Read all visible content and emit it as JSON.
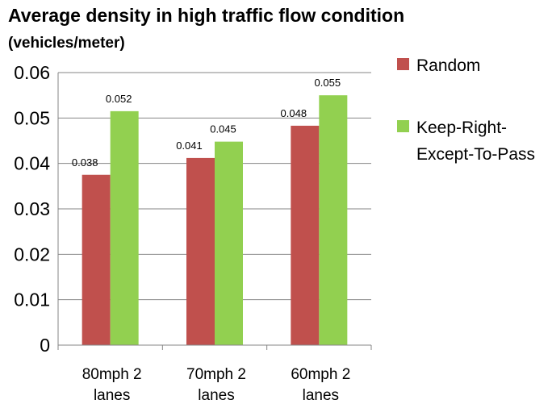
{
  "chart_data": {
    "type": "bar",
    "title": "Average density in high traffic flow condition",
    "subtitle": "(vehicles/meter)",
    "categories": [
      [
        "80mph 2",
        "lanes"
      ],
      [
        "70mph 2",
        "lanes"
      ],
      [
        "60mph 2",
        "lanes"
      ]
    ],
    "series": [
      {
        "name": "Random",
        "color": "#c0504d",
        "values": [
          0.0375,
          0.0412,
          0.0483
        ],
        "labels": [
          "0.038",
          "0.041",
          "0.048"
        ]
      },
      {
        "name": "Keep-Right-Except-To-Pass",
        "legend_lines": [
          "Keep-Right-",
          "Except-To-Pass"
        ],
        "color": "#92d050",
        "values": [
          0.0515,
          0.0448,
          0.055
        ],
        "labels": [
          "0.052",
          "0.045",
          "0.055"
        ]
      }
    ],
    "ylim": [
      0,
      0.06
    ],
    "yticks": [
      0,
      0.01,
      0.02,
      0.03,
      0.04,
      0.05,
      0.06
    ],
    "ytick_labels": [
      "0",
      "0.01",
      "0.02",
      "0.03",
      "0.04",
      "0.05",
      "0.06"
    ],
    "xlabel": "",
    "ylabel": "",
    "grid": true,
    "legend_position": "right"
  }
}
